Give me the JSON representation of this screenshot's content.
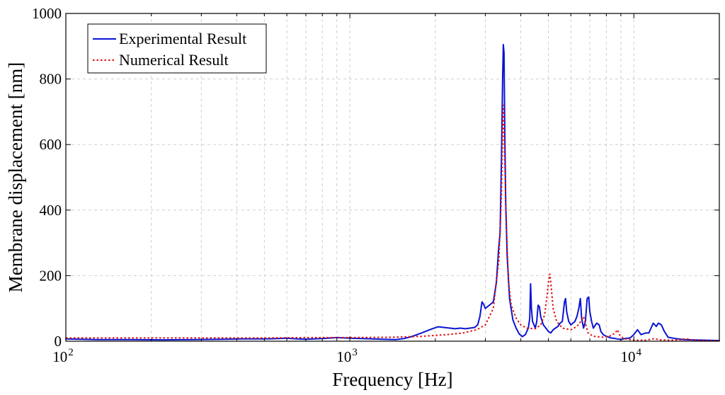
{
  "chart_data": {
    "type": "line",
    "title": "",
    "xlabel": "Frequency [Hz]",
    "ylabel": "Membrane displacement [nm]",
    "xscale": "log",
    "xlim": [
      100,
      20000
    ],
    "ylim": [
      0,
      1000
    ],
    "grid": true,
    "legend_position": "top-left",
    "x_ticks": [
      {
        "value": 100,
        "base": "10",
        "exp": "2"
      },
      {
        "value": 1000,
        "base": "10",
        "exp": "3"
      },
      {
        "value": 10000,
        "base": "10",
        "exp": "4"
      }
    ],
    "y_ticks": [
      0,
      200,
      400,
      600,
      800,
      1000
    ],
    "series": [
      {
        "name": "Experimental Result",
        "color": "#0a14d2",
        "style": "solid",
        "points": [
          [
            100,
            7
          ],
          [
            130,
            5
          ],
          [
            170,
            5
          ],
          [
            220,
            4
          ],
          [
            280,
            5
          ],
          [
            350,
            6
          ],
          [
            420,
            7
          ],
          [
            500,
            7
          ],
          [
            560,
            8
          ],
          [
            600,
            9
          ],
          [
            650,
            7
          ],
          [
            700,
            6
          ],
          [
            800,
            8
          ],
          [
            900,
            11
          ],
          [
            1000,
            9
          ],
          [
            1100,
            8
          ],
          [
            1200,
            7
          ],
          [
            1300,
            6
          ],
          [
            1450,
            5
          ],
          [
            1550,
            8
          ],
          [
            1650,
            14
          ],
          [
            1750,
            22
          ],
          [
            1850,
            30
          ],
          [
            1950,
            38
          ],
          [
            2050,
            44
          ],
          [
            2150,
            42
          ],
          [
            2250,
            40
          ],
          [
            2350,
            38
          ],
          [
            2450,
            40
          ],
          [
            2550,
            38
          ],
          [
            2650,
            40
          ],
          [
            2750,
            42
          ],
          [
            2820,
            50
          ],
          [
            2870,
            75
          ],
          [
            2920,
            120
          ],
          [
            2960,
            112
          ],
          [
            3000,
            100
          ],
          [
            3050,
            105
          ],
          [
            3100,
            110
          ],
          [
            3200,
            120
          ],
          [
            3280,
            180
          ],
          [
            3340,
            280
          ],
          [
            3380,
            330
          ],
          [
            3420,
            560
          ],
          [
            3450,
            800
          ],
          [
            3470,
            905
          ],
          [
            3490,
            880
          ],
          [
            3510,
            650
          ],
          [
            3540,
            420
          ],
          [
            3580,
            260
          ],
          [
            3650,
            130
          ],
          [
            3750,
            65
          ],
          [
            3850,
            40
          ],
          [
            3950,
            22
          ],
          [
            4050,
            14
          ],
          [
            4150,
            20
          ],
          [
            4250,
            40
          ],
          [
            4300,
            70
          ],
          [
            4330,
            175
          ],
          [
            4360,
            100
          ],
          [
            4400,
            60
          ],
          [
            4450,
            50
          ],
          [
            4500,
            40
          ],
          [
            4550,
            60
          ],
          [
            4600,
            110
          ],
          [
            4650,
            105
          ],
          [
            4700,
            75
          ],
          [
            4800,
            50
          ],
          [
            4900,
            40
          ],
          [
            5000,
            30
          ],
          [
            5100,
            25
          ],
          [
            5200,
            35
          ],
          [
            5300,
            40
          ],
          [
            5400,
            45
          ],
          [
            5500,
            55
          ],
          [
            5600,
            60
          ],
          [
            5700,
            120
          ],
          [
            5750,
            130
          ],
          [
            5800,
            90
          ],
          [
            5900,
            60
          ],
          [
            6000,
            50
          ],
          [
            6100,
            55
          ],
          [
            6200,
            60
          ],
          [
            6300,
            75
          ],
          [
            6400,
            100
          ],
          [
            6480,
            130
          ],
          [
            6550,
            70
          ],
          [
            6650,
            40
          ],
          [
            6750,
            60
          ],
          [
            6850,
            130
          ],
          [
            6930,
            135
          ],
          [
            7000,
            90
          ],
          [
            7100,
            60
          ],
          [
            7200,
            40
          ],
          [
            7400,
            55
          ],
          [
            7550,
            50
          ],
          [
            7650,
            30
          ],
          [
            7800,
            20
          ],
          [
            8000,
            15
          ],
          [
            8300,
            10
          ],
          [
            8600,
            8
          ],
          [
            9000,
            5
          ],
          [
            9300,
            8
          ],
          [
            9700,
            10
          ],
          [
            10000,
            20
          ],
          [
            10300,
            35
          ],
          [
            10600,
            20
          ],
          [
            11000,
            25
          ],
          [
            11300,
            25
          ],
          [
            11700,
            55
          ],
          [
            12000,
            45
          ],
          [
            12200,
            55
          ],
          [
            12500,
            50
          ],
          [
            12800,
            30
          ],
          [
            13200,
            12
          ],
          [
            14000,
            8
          ],
          [
            15000,
            5
          ],
          [
            16000,
            4
          ],
          [
            18000,
            3
          ],
          [
            20000,
            2
          ]
        ]
      },
      {
        "name": "Numerical Result",
        "color": "#e01010",
        "style": "dotted",
        "points": [
          [
            100,
            10
          ],
          [
            150,
            10
          ],
          [
            200,
            10
          ],
          [
            300,
            10
          ],
          [
            400,
            10
          ],
          [
            500,
            10
          ],
          [
            700,
            11
          ],
          [
            1000,
            11
          ],
          [
            1400,
            12
          ],
          [
            1800,
            15
          ],
          [
            2200,
            20
          ],
          [
            2500,
            25
          ],
          [
            2800,
            35
          ],
          [
            3000,
            50
          ],
          [
            3200,
            100
          ],
          [
            3350,
            250
          ],
          [
            3420,
            450
          ],
          [
            3460,
            700
          ],
          [
            3480,
            720
          ],
          [
            3500,
            600
          ],
          [
            3550,
            380
          ],
          [
            3620,
            180
          ],
          [
            3700,
            110
          ],
          [
            3850,
            70
          ],
          [
            4000,
            50
          ],
          [
            4200,
            40
          ],
          [
            4500,
            38
          ],
          [
            4700,
            50
          ],
          [
            4850,
            80
          ],
          [
            4950,
            140
          ],
          [
            5020,
            190
          ],
          [
            5060,
            205
          ],
          [
            5100,
            180
          ],
          [
            5200,
            100
          ],
          [
            5350,
            60
          ],
          [
            5600,
            40
          ],
          [
            6000,
            35
          ],
          [
            6300,
            45
          ],
          [
            6500,
            60
          ],
          [
            6650,
            75
          ],
          [
            6750,
            55
          ],
          [
            6900,
            25
          ],
          [
            7200,
            15
          ],
          [
            7800,
            12
          ],
          [
            8200,
            15
          ],
          [
            8600,
            25
          ],
          [
            8750,
            35
          ],
          [
            8900,
            20
          ],
          [
            9200,
            8
          ],
          [
            10000,
            3
          ],
          [
            11000,
            3
          ],
          [
            11800,
            8
          ],
          [
            12300,
            4
          ],
          [
            13500,
            3
          ],
          [
            14500,
            4
          ],
          [
            15300,
            8
          ],
          [
            15700,
            5
          ],
          [
            17000,
            2
          ],
          [
            20000,
            1
          ]
        ]
      }
    ]
  }
}
